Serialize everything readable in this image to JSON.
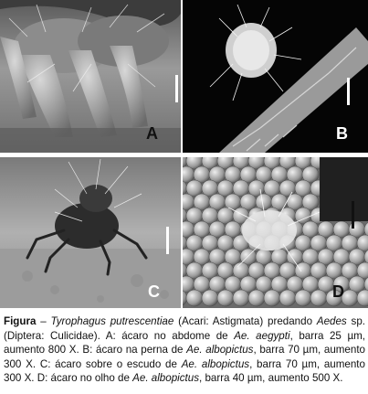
{
  "panels": [
    {
      "letter": "A",
      "letter_color": "#111111",
      "scale_color": "#ffffff"
    },
    {
      "letter": "B",
      "letter_color": "#ffffff",
      "scale_color": "#ffffff"
    },
    {
      "letter": "C",
      "letter_color": "#ffffff",
      "scale_color": "#ffffff"
    },
    {
      "letter": "D",
      "letter_color": "#111111",
      "scale_color": "#111111"
    }
  ],
  "caption": {
    "label": "Figura",
    "dash": " – ",
    "species": "Tyrophagus putrescentiae",
    "s1": " (Acari: Astigmata) predando ",
    "genus": "Aedes",
    "s2": " sp. (Diptera: Culicidae). A: ácaro no abdome de ",
    "sp_a": "Ae. aegypti",
    "s3": ", barra 25 µm, aumento 800 X. B: ácaro na perna de ",
    "sp_b": "Ae. albopictus",
    "s4": ", barra 70 µm, aumento 300 X. C: ácaro sobre o escudo de ",
    "sp_c": "Ae. albopictus",
    "s5": ", barra 70 µm, aumento 300 X. D: ácaro no olho de ",
    "sp_d": "Ae. albopictus",
    "s6": ", barra 40 µm, aumento 500 X."
  }
}
